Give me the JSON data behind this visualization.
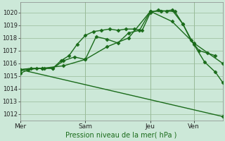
{
  "bg_color": "#cce8d8",
  "grid_color": "#99bb99",
  "line_color": "#1a6b1a",
  "marker_color": "#1a6b1a",
  "title": "Pression niveau de la mer( hPa )",
  "ylim": [
    1011.5,
    1020.8
  ],
  "yticks": [
    1012,
    1013,
    1014,
    1015,
    1016,
    1017,
    1018,
    1019,
    1020
  ],
  "xlabel_days": [
    "Mer",
    "Sam",
    "Jeu",
    "Ven"
  ],
  "vline_x": [
    0.0,
    3.0,
    6.0,
    8.0
  ],
  "xlim": [
    0,
    9.33
  ],
  "series": [
    {
      "x": [
        0.0,
        0.375,
        0.75,
        1.125,
        1.5,
        1.875,
        2.25,
        2.625,
        3.0,
        3.375,
        3.75,
        4.125,
        4.5,
        4.875,
        5.25,
        5.625,
        6.0,
        6.375,
        6.75,
        7.125,
        7.5,
        7.875,
        8.25,
        8.625,
        9.0
      ],
      "y": [
        1015.2,
        1015.5,
        1015.6,
        1015.6,
        1015.6,
        1016.2,
        1016.6,
        1017.5,
        1018.2,
        1018.5,
        1018.6,
        1018.7,
        1018.6,
        1018.7,
        1018.7,
        1018.6,
        1020.0,
        1020.2,
        1020.1,
        1020.1,
        1019.1,
        1017.8,
        1017.0,
        1016.8,
        1016.6
      ],
      "marker": "D",
      "ms": 2.5,
      "lw": 1.0
    },
    {
      "x": [
        0.0,
        0.5,
        1.0,
        1.5,
        2.0,
        2.5,
        3.0,
        3.5,
        4.0,
        4.5,
        5.0,
        5.5,
        6.0,
        6.5,
        7.0,
        7.5,
        8.0,
        8.5,
        9.0,
        9.33
      ],
      "y": [
        1015.5,
        1015.6,
        1015.6,
        1015.6,
        1016.2,
        1016.5,
        1016.3,
        1018.1,
        1017.9,
        1017.6,
        1018.4,
        1018.6,
        1020.1,
        1020.1,
        1020.2,
        1019.1,
        1017.5,
        1016.1,
        1015.3,
        1014.5
      ],
      "marker": "D",
      "ms": 2.5,
      "lw": 1.0
    },
    {
      "x": [
        0.0,
        1.0,
        2.0,
        3.0,
        4.0,
        5.0,
        6.0,
        7.0,
        8.0,
        9.33
      ],
      "y": [
        1015.5,
        1015.6,
        1015.8,
        1016.3,
        1017.3,
        1018.0,
        1020.1,
        1019.3,
        1017.6,
        1016.0
      ],
      "marker": "D",
      "ms": 2.5,
      "lw": 1.0
    },
    {
      "x": [
        0.0,
        9.33
      ],
      "y": [
        1015.5,
        1011.8
      ],
      "marker": "D",
      "ms": 2.5,
      "lw": 1.0
    }
  ],
  "figsize": [
    3.2,
    2.0
  ],
  "dpi": 100
}
